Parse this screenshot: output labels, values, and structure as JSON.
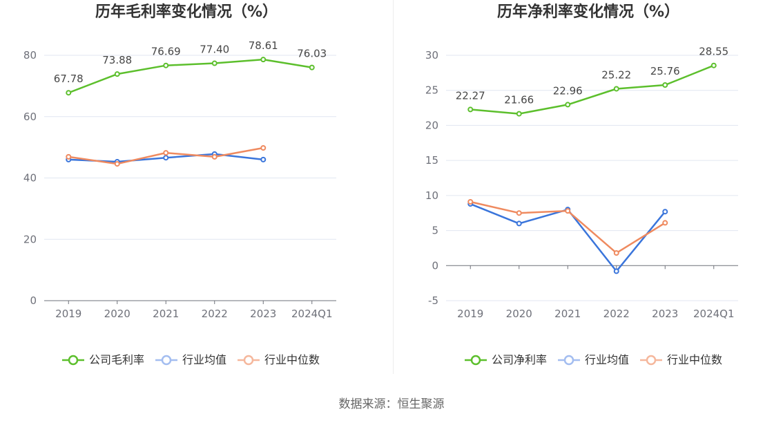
{
  "colors": {
    "grid": "#e0e6f1",
    "axis": "#6e7079",
    "point_fill": "#ffffff"
  },
  "footer": {
    "source": "数据来源：恒生聚源"
  },
  "chart_data": [
    {
      "type": "line",
      "title": "历年毛利率变化情况（%）",
      "categories": [
        "2019",
        "2020",
        "2021",
        "2022",
        "2023",
        "2024Q1"
      ],
      "ylim": [
        0,
        80
      ],
      "yticks": [
        0,
        20,
        40,
        60,
        80
      ],
      "grid": true,
      "legend_position": "bottom",
      "series": [
        {
          "name": "公司毛利率",
          "color": "#5cbf2c",
          "legend_color": "#5cbf2c",
          "values": [
            67.78,
            73.88,
            76.69,
            77.4,
            78.61,
            76.03
          ],
          "labels": [
            "67.78",
            "73.88",
            "76.69",
            "77.40",
            "78.61",
            "76.03"
          ]
        },
        {
          "name": "行业均值",
          "color": "#3a75db",
          "legend_color": "#a3bdf0",
          "values": [
            46.0,
            45.3,
            46.6,
            47.8,
            46.0,
            null
          ]
        },
        {
          "name": "行业中位数",
          "color": "#ef8a5f",
          "legend_color": "#f5b79c",
          "values": [
            46.9,
            44.6,
            48.2,
            46.9,
            49.8,
            null
          ]
        }
      ]
    },
    {
      "type": "line",
      "title": "历年净利率变化情况（%）",
      "categories": [
        "2019",
        "2020",
        "2021",
        "2022",
        "2023",
        "2024Q1"
      ],
      "ylim": [
        -5,
        30
      ],
      "yticks": [
        -5,
        0,
        5,
        10,
        15,
        20,
        25,
        30
      ],
      "grid": true,
      "legend_position": "bottom",
      "series": [
        {
          "name": "公司净利率",
          "color": "#5cbf2c",
          "legend_color": "#5cbf2c",
          "values": [
            22.27,
            21.66,
            22.96,
            25.22,
            25.76,
            28.55
          ],
          "labels": [
            "22.27",
            "21.66",
            "22.96",
            "25.22",
            "25.76",
            "28.55"
          ]
        },
        {
          "name": "行业均值",
          "color": "#3a75db",
          "legend_color": "#a3bdf0",
          "values": [
            8.8,
            6.0,
            8.0,
            -0.8,
            7.7,
            null
          ]
        },
        {
          "name": "行业中位数",
          "color": "#ef8a5f",
          "legend_color": "#f5b79c",
          "values": [
            9.1,
            7.5,
            7.8,
            1.8,
            6.1,
            null
          ]
        }
      ]
    }
  ]
}
